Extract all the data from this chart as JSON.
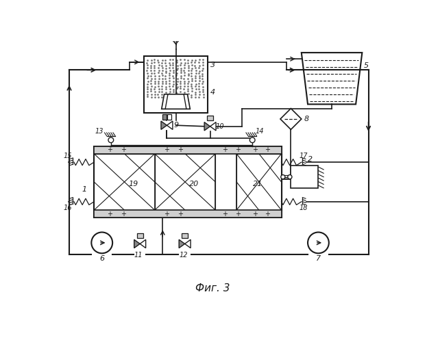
{
  "title": "Фиг. 3",
  "bg_color": "#ffffff",
  "line_color": "#1a1a1a",
  "fig_width": 6.23,
  "fig_height": 5.0,
  "dpi": 100
}
